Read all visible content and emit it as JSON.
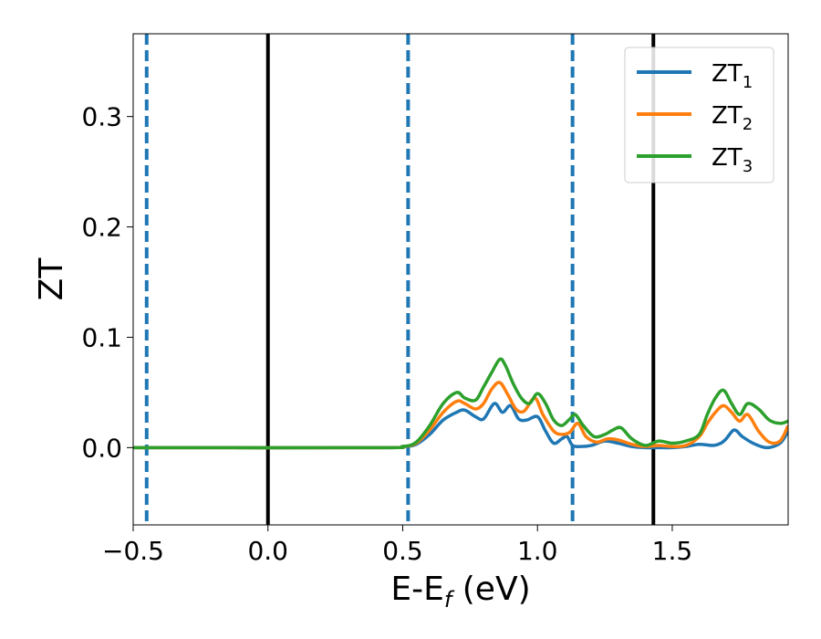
{
  "chart_data": {
    "type": "line",
    "title": "",
    "xlabel": {
      "main": "E-E",
      "sub": "f",
      "unit": " (eV)"
    },
    "ylabel": "ZT",
    "xlim": [
      -0.5,
      1.93
    ],
    "ylim": [
      -0.07,
      0.375
    ],
    "xticks": [
      -0.5,
      0.0,
      0.5,
      1.0,
      1.5
    ],
    "xtick_labels": [
      "−0.5",
      "0.0",
      "0.5",
      "1.0",
      "1.5"
    ],
    "yticks": [
      0.0,
      0.1,
      0.2,
      0.3
    ],
    "ytick_labels": [
      "0.0",
      "0.1",
      "0.2",
      "0.3"
    ],
    "grid": false,
    "legend_position": "top-right",
    "vlines_solid": {
      "color": "#000000",
      "x": [
        0.0,
        1.43
      ]
    },
    "vlines_dashed": {
      "color": "#1f77b4",
      "x": [
        -0.45,
        0.52,
        1.13
      ]
    },
    "series": [
      {
        "name": "ZT",
        "name_sub": "1",
        "color": "#1f77b4",
        "x": [
          -0.5,
          0.4,
          0.5,
          0.55,
          0.6,
          0.65,
          0.7,
          0.73,
          0.77,
          0.8,
          0.84,
          0.87,
          0.9,
          0.93,
          0.96,
          1.0,
          1.03,
          1.06,
          1.09,
          1.11,
          1.13,
          1.16,
          1.2,
          1.25,
          1.3,
          1.35,
          1.4,
          1.45,
          1.5,
          1.55,
          1.6,
          1.65,
          1.68,
          1.7,
          1.73,
          1.76,
          1.8,
          1.85,
          1.9,
          1.93
        ],
        "y": [
          0.0,
          0.0,
          0.001,
          0.003,
          0.012,
          0.025,
          0.032,
          0.034,
          0.028,
          0.026,
          0.04,
          0.032,
          0.038,
          0.026,
          0.025,
          0.028,
          0.015,
          0.004,
          0.008,
          0.01,
          0.002,
          0.001,
          0.002,
          0.006,
          0.004,
          0.001,
          0.0,
          0.0,
          0.0,
          0.001,
          0.003,
          0.002,
          0.004,
          0.008,
          0.016,
          0.01,
          0.004,
          0.0,
          0.004,
          0.015
        ]
      },
      {
        "name": "ZT",
        "name_sub": "2",
        "color": "#ff7f0e",
        "x": [
          -0.5,
          0.4,
          0.5,
          0.55,
          0.6,
          0.65,
          0.7,
          0.73,
          0.77,
          0.8,
          0.83,
          0.86,
          0.89,
          0.92,
          0.95,
          0.99,
          1.02,
          1.06,
          1.09,
          1.12,
          1.15,
          1.18,
          1.22,
          1.26,
          1.3,
          1.35,
          1.4,
          1.45,
          1.5,
          1.55,
          1.6,
          1.63,
          1.66,
          1.69,
          1.72,
          1.75,
          1.78,
          1.82,
          1.86,
          1.9,
          1.93
        ],
        "y": [
          0.0,
          0.0,
          0.001,
          0.004,
          0.016,
          0.032,
          0.042,
          0.04,
          0.035,
          0.04,
          0.053,
          0.059,
          0.048,
          0.035,
          0.033,
          0.045,
          0.03,
          0.015,
          0.012,
          0.014,
          0.022,
          0.01,
          0.005,
          0.008,
          0.007,
          0.003,
          0.001,
          0.002,
          0.001,
          0.002,
          0.01,
          0.022,
          0.032,
          0.038,
          0.032,
          0.024,
          0.03,
          0.015,
          0.005,
          0.006,
          0.02
        ]
      },
      {
        "name": "ZT",
        "name_sub": "3",
        "color": "#2ca02c",
        "x": [
          -0.5,
          0.4,
          0.5,
          0.55,
          0.6,
          0.65,
          0.7,
          0.73,
          0.77,
          0.8,
          0.83,
          0.86,
          0.88,
          0.91,
          0.94,
          0.97,
          1.0,
          1.03,
          1.06,
          1.09,
          1.12,
          1.14,
          1.17,
          1.21,
          1.25,
          1.28,
          1.31,
          1.35,
          1.4,
          1.45,
          1.5,
          1.55,
          1.6,
          1.63,
          1.66,
          1.69,
          1.72,
          1.75,
          1.78,
          1.82,
          1.86,
          1.9,
          1.93
        ],
        "y": [
          0.0,
          0.0,
          0.001,
          0.005,
          0.02,
          0.04,
          0.05,
          0.045,
          0.043,
          0.055,
          0.068,
          0.08,
          0.075,
          0.058,
          0.045,
          0.04,
          0.049,
          0.04,
          0.025,
          0.02,
          0.026,
          0.03,
          0.02,
          0.01,
          0.012,
          0.016,
          0.018,
          0.008,
          0.002,
          0.006,
          0.004,
          0.006,
          0.012,
          0.03,
          0.045,
          0.052,
          0.04,
          0.03,
          0.04,
          0.035,
          0.025,
          0.022,
          0.024
        ]
      }
    ]
  }
}
